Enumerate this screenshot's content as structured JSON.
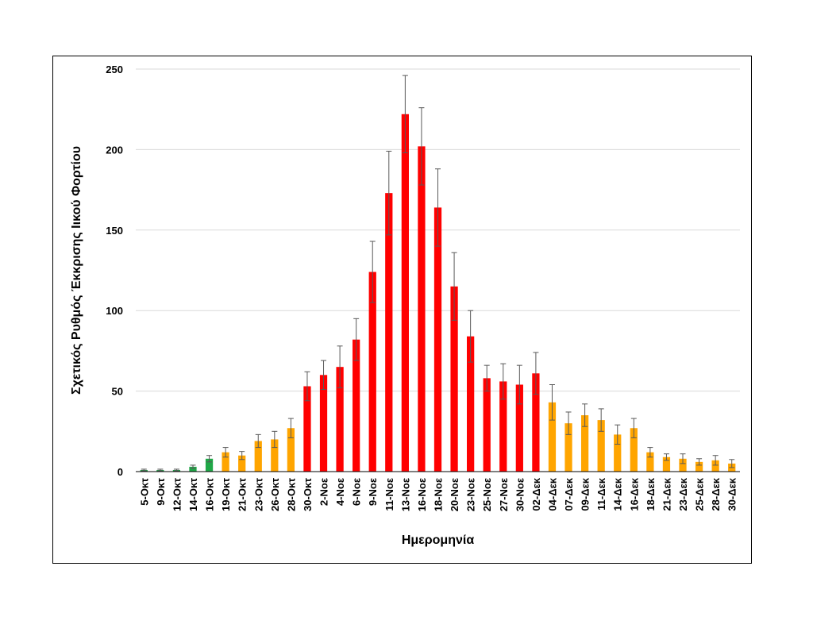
{
  "chart_data": {
    "type": "bar",
    "title": "",
    "xlabel": "Ημερομηνία",
    "ylabel": "Σχετικός Ρυθμός Έκκρισης Ιικού Φορτίου",
    "ylim": [
      0,
      250
    ],
    "yticks": [
      0,
      50,
      100,
      150,
      200,
      250
    ],
    "grid": true,
    "categories": [
      "5-Οκτ",
      "9-Οκτ",
      "12-Οκτ",
      "14-Οκτ",
      "16-Οκτ",
      "19-Οκτ",
      "21-Οκτ",
      "23-Οκτ",
      "26-Οκτ",
      "28-Οκτ",
      "30-Οκτ",
      "2-Νοε",
      "4-Νοε",
      "6-Νοε",
      "9-Νοε",
      "11-Νοε",
      "13-Νοε",
      "16-Νοε",
      "18-Νοε",
      "20-Νοε",
      "23-Νοε",
      "25-Νοε",
      "27-Νοε",
      "30-Νοε",
      "02-Δεκ",
      "04-Δεκ",
      "07-Δεκ",
      "09-Δεκ",
      "11-Δεκ",
      "14-Δεκ",
      "16-Δεκ",
      "18-Δεκ",
      "21-Δεκ",
      "23-Δεκ",
      "25-Δεκ",
      "28-Δεκ",
      "30-Δεκ"
    ],
    "values": [
      1,
      1,
      1,
      3,
      8,
      12,
      10,
      19,
      20,
      27,
      53,
      60,
      65,
      82,
      124,
      173,
      222,
      202,
      164,
      115,
      84,
      58,
      56,
      54,
      61,
      43,
      30,
      35,
      32,
      23,
      27,
      12,
      9,
      8,
      6,
      7,
      5
    ],
    "errors": [
      0.5,
      0.5,
      0.5,
      1,
      2,
      3,
      2.5,
      4,
      5,
      6,
      9,
      9,
      13,
      13,
      19,
      26,
      24,
      24,
      24,
      21,
      16,
      8,
      11,
      12,
      13,
      11,
      7,
      7,
      7,
      6,
      6,
      3,
      2,
      3,
      2,
      3,
      2.5
    ],
    "colors": [
      "#1fa847",
      "#1fa847",
      "#1fa847",
      "#1fa847",
      "#1fa847",
      "#ffa500",
      "#ffa500",
      "#ffa500",
      "#ffa500",
      "#ffa500",
      "#ff0000",
      "#ff0000",
      "#ff0000",
      "#ff0000",
      "#ff0000",
      "#ff0000",
      "#ff0000",
      "#ff0000",
      "#ff0000",
      "#ff0000",
      "#ff0000",
      "#ff0000",
      "#ff0000",
      "#ff0000",
      "#ff0000",
      "#ffa500",
      "#ffa500",
      "#ffa500",
      "#ffa500",
      "#ffa500",
      "#ffa500",
      "#ffa500",
      "#ffa500",
      "#ffa500",
      "#ffa500",
      "#ffa500",
      "#ffa500"
    ],
    "gridline_color": "#d9d9d9",
    "error_bar_color": "#595959"
  }
}
